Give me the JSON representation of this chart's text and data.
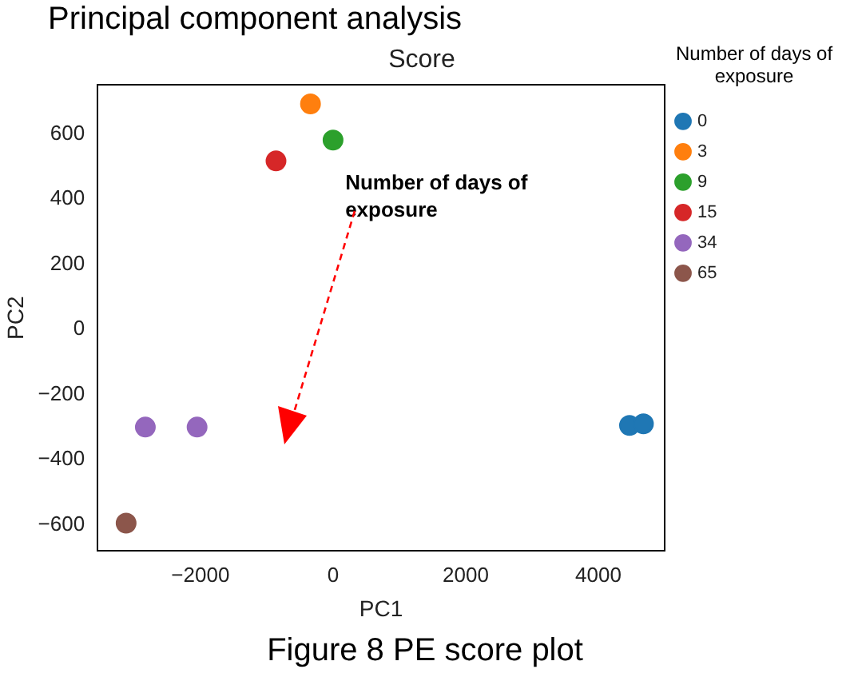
{
  "chart_data": {
    "type": "scatter",
    "title": "Principal component analysis",
    "subtitle": "Score",
    "xlabel": "PC1",
    "ylabel": "PC2",
    "legend_title": "Number of days of exposure",
    "legend": "right",
    "marker": "circle",
    "grid": false,
    "xlim": [
      -3550,
      5000
    ],
    "xticks": [
      -2000,
      0,
      2000,
      4000
    ],
    "ylim": [
      -680,
      750
    ],
    "yticks": [
      -600,
      -400,
      -200,
      0,
      200,
      400,
      600
    ],
    "annotations": [
      "Number of days of exposure",
      "Figure 8 PE score plot"
    ],
    "series": [
      {
        "name": "0",
        "color": "#1f77b4",
        "x": [
          4470,
          4680
        ],
        "values": [
          -295,
          -290
        ]
      },
      {
        "name": "3",
        "color": "#ff7f0e",
        "x": [
          -340
        ],
        "values": [
          692
        ]
      },
      {
        "name": "9",
        "color": "#2ca02c",
        "x": [
          0
        ],
        "values": [
          581
        ]
      },
      {
        "name": "15",
        "color": "#d62728",
        "x": [
          -860
        ],
        "values": [
          517
        ]
      },
      {
        "name": "34",
        "color": "#9467bd",
        "x": [
          -2830,
          -2050
        ],
        "values": [
          -300,
          -300
        ]
      },
      {
        "name": "65",
        "color": "#8c564b",
        "x": [
          -3120
        ],
        "values": [
          -595
        ]
      }
    ]
  }
}
